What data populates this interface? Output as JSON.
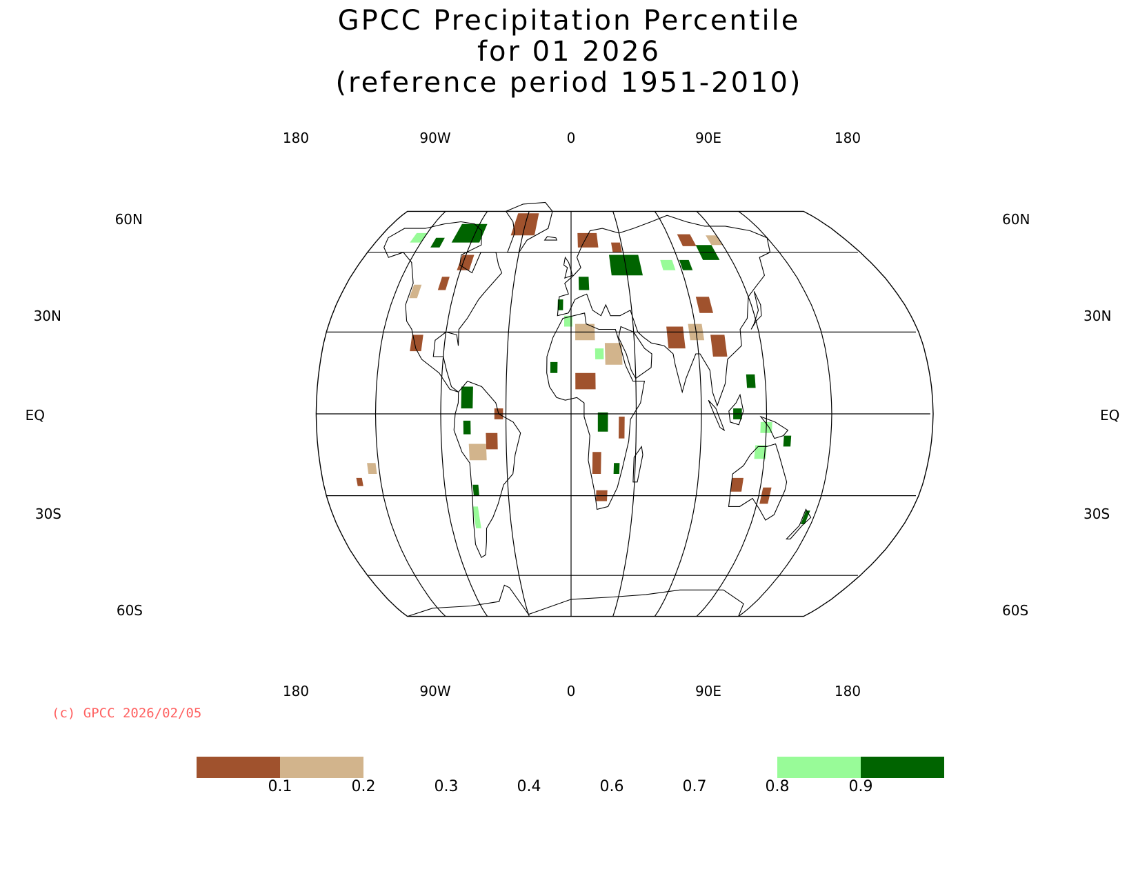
{
  "title": {
    "line1": "GPCC Precipitation Percentile",
    "line2": "for 01 2026",
    "line3": "(reference period 1951-2010)"
  },
  "axes": {
    "top_lon_labels": [
      "180",
      "90W",
      "0",
      "90E",
      "180"
    ],
    "bottom_lon_labels": [
      "180",
      "90W",
      "0",
      "90E",
      "180"
    ],
    "lat_labels": [
      "60N",
      "30N",
      "EQ",
      "30S",
      "60S"
    ]
  },
  "copyright": "(c) GPCC 2026/02/05",
  "legend": {
    "tick_labels": [
      "0.1",
      "0.2",
      "0.3",
      "0.4",
      "0.6",
      "0.7",
      "0.8",
      "0.9"
    ],
    "colors": {
      "below_0_1": "#a0522d",
      "range_0_1_0_2": "#d2b48c",
      "range_0_8_0_9": "#98fb98",
      "above_0_9": "#006400"
    }
  },
  "map": {
    "projection": "Robinson",
    "central_meridian": "0",
    "colors": {
      "dry_extreme": "#a0522d",
      "dry": "#d2b48c",
      "wet": "#98fb98",
      "wet_extreme": "#006400",
      "coastline": "#000000",
      "grid": "#000000"
    }
  }
}
